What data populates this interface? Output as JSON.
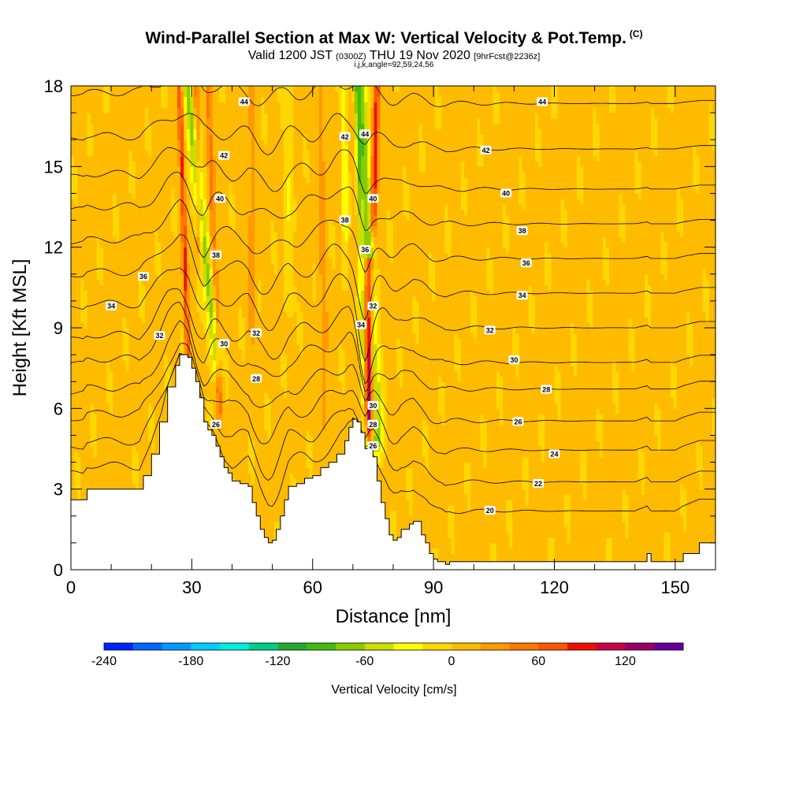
{
  "header": {
    "title": "Wind-Parallel Section at Max W: Vertical Velocity & Pot.Temp.",
    "copyright": "(C)",
    "valid_prefix": "Valid 1200 JST",
    "valid_utc": "(0300Z)",
    "valid_date": "THU 19 Nov 2020",
    "forecast": "[9hrFcst@2236z]",
    "indices": "i,j,k,angle=92,59,24,56"
  },
  "chart_data": {
    "type": "heatmap",
    "title": "Wind-Parallel Section at Max W: Vertical Velocity & Pot.Temp.",
    "xlabel": "Distance [nm]",
    "ylabel": "Height [Kft MSL]",
    "xlim": [
      0,
      160
    ],
    "ylim": [
      0,
      18
    ],
    "x_ticks": [
      "0",
      "30",
      "60",
      "90",
      "120",
      "150"
    ],
    "y_ticks": [
      "0",
      "3",
      "6",
      "9",
      "12",
      "15",
      "18"
    ],
    "x_tick_values": [
      0,
      30,
      60,
      90,
      120,
      150
    ],
    "y_tick_values": [
      0,
      3,
      6,
      9,
      12,
      15,
      18
    ],
    "terrain_profile": {
      "x": [
        0,
        3,
        4,
        17,
        18,
        20,
        22,
        24,
        26,
        27,
        29,
        30,
        31,
        32,
        33,
        34,
        35,
        36,
        37,
        38,
        39,
        40,
        42,
        44,
        45,
        46,
        47,
        48,
        49,
        50,
        51,
        52,
        53,
        54,
        56,
        58,
        60,
        62,
        64,
        66,
        68,
        69,
        70,
        71,
        72,
        73,
        74,
        75,
        76,
        77,
        78,
        79,
        80,
        81,
        82,
        84,
        85,
        87,
        88,
        89,
        90,
        91,
        92,
        93,
        94,
        95,
        100,
        110,
        120,
        130,
        140,
        143,
        144,
        148,
        150,
        152,
        156,
        160
      ],
      "height_kft": [
        2.6,
        2.6,
        3.0,
        3.0,
        3.5,
        4.3,
        5.5,
        6.8,
        7.6,
        8.0,
        7.9,
        7.5,
        7.0,
        6.4,
        5.5,
        5.2,
        5.0,
        4.6,
        4.2,
        3.8,
        3.6,
        3.3,
        3.2,
        3.1,
        2.5,
        2.0,
        1.5,
        1.2,
        1.0,
        1.1,
        1.5,
        2.0,
        2.6,
        3.1,
        3.2,
        3.4,
        3.5,
        3.8,
        4.0,
        4.3,
        4.8,
        5.3,
        5.6,
        5.5,
        5.1,
        4.5,
        4.6,
        4.2,
        3.3,
        2.5,
        1.9,
        1.3,
        1.1,
        1.2,
        1.5,
        1.7,
        1.8,
        1.3,
        1.0,
        0.6,
        0.4,
        0.3,
        0.3,
        0.2,
        0.3,
        0.3,
        0.3,
        0.3,
        0.3,
        0.3,
        0.3,
        0.6,
        0.3,
        0.3,
        0.3,
        0.6,
        1.0,
        1.0
      ]
    },
    "vertical_velocity_features": [
      {
        "x0": 29,
        "x1": 36,
        "y0": 18,
        "y1": 8.0,
        "half_width": 1.3,
        "w": -75
      },
      {
        "x0": 27,
        "x1": 29,
        "y0": 18,
        "y1": 8.0,
        "half_width": 0.6,
        "w": 75
      },
      {
        "x0": 31,
        "x1": 32,
        "y0": 18,
        "y1": 12,
        "half_width": 0.6,
        "w": 55
      },
      {
        "x0": 34,
        "x1": 37,
        "y0": 18,
        "y1": 6,
        "half_width": 0.8,
        "w": 45
      },
      {
        "x0": 72,
        "x1": 76,
        "y0": 18,
        "y1": 4.8,
        "half_width": 1.4,
        "w": -80
      },
      {
        "x0": 71,
        "x1": 73,
        "y0": 18,
        "y1": 4.8,
        "half_width": 0.6,
        "w": -60
      },
      {
        "x0": 74,
        "x1": 74,
        "y0": 11,
        "y1": 5.5,
        "half_width": 1.1,
        "w": 140
      },
      {
        "x0": 76,
        "x1": 75,
        "y0": 18,
        "y1": 13,
        "half_width": 0.8,
        "w": 90
      },
      {
        "x0": 68,
        "x1": 68,
        "y0": 18,
        "y1": 11,
        "half_width": 0.7,
        "w": -35
      },
      {
        "x0": 62,
        "x1": 63,
        "y0": 18,
        "y1": 5.5,
        "half_width": 0.9,
        "w": 25
      },
      {
        "x0": 54,
        "x1": 54,
        "y0": 18,
        "y1": 10,
        "half_width": 1.2,
        "w": -20
      },
      {
        "x0": 45,
        "x1": 45,
        "y0": 18,
        "y1": 9,
        "half_width": 0.9,
        "w": 25
      }
    ],
    "potential_temperature_levels": [
      20,
      22,
      24,
      26,
      28,
      30,
      32,
      34,
      36,
      38,
      40,
      42,
      44
    ],
    "theta_heights_kft_far_field": [
      2.0,
      3.1,
      4.3,
      5.4,
      6.6,
      7.6,
      8.9,
      10.2,
      11.5,
      12.8,
      14.1,
      15.6,
      17.3
    ],
    "contour_labels": [
      {
        "text": "44",
        "x": 43,
        "y": 17.4
      },
      {
        "text": "42",
        "x": 38,
        "y": 15.4
      },
      {
        "text": "40",
        "x": 37,
        "y": 13.8
      },
      {
        "text": "38",
        "x": 36,
        "y": 11.7
      },
      {
        "text": "36",
        "x": 18,
        "y": 10.9
      },
      {
        "text": "34",
        "x": 10,
        "y": 9.8
      },
      {
        "text": "32",
        "x": 22,
        "y": 8.7
      },
      {
        "text": "30",
        "x": 38,
        "y": 8.4
      },
      {
        "text": "32",
        "x": 46,
        "y": 8.8
      },
      {
        "text": "28",
        "x": 46,
        "y": 7.1
      },
      {
        "text": "26",
        "x": 36,
        "y": 5.4
      },
      {
        "text": "42",
        "x": 68,
        "y": 16.1
      },
      {
        "text": "44",
        "x": 73,
        "y": 16.2
      },
      {
        "text": "40",
        "x": 75,
        "y": 13.8
      },
      {
        "text": "38",
        "x": 68,
        "y": 13.0
      },
      {
        "text": "36",
        "x": 73,
        "y": 11.9
      },
      {
        "text": "34",
        "x": 72,
        "y": 9.1
      },
      {
        "text": "32",
        "x": 75,
        "y": 9.8
      },
      {
        "text": "30",
        "x": 75,
        "y": 6.1
      },
      {
        "text": "28",
        "x": 75,
        "y": 5.4
      },
      {
        "text": "26",
        "x": 75,
        "y": 4.6
      },
      {
        "text": "44",
        "x": 117,
        "y": 17.4
      },
      {
        "text": "42",
        "x": 103,
        "y": 15.6
      },
      {
        "text": "40",
        "x": 108,
        "y": 14.0
      },
      {
        "text": "38",
        "x": 112,
        "y": 12.6
      },
      {
        "text": "36",
        "x": 113,
        "y": 11.4
      },
      {
        "text": "34",
        "x": 112,
        "y": 10.2
      },
      {
        "text": "32",
        "x": 104,
        "y": 8.9
      },
      {
        "text": "30",
        "x": 110,
        "y": 7.8
      },
      {
        "text": "28",
        "x": 118,
        "y": 6.7
      },
      {
        "text": "26",
        "x": 111,
        "y": 5.5
      },
      {
        "text": "24",
        "x": 120,
        "y": 4.3
      },
      {
        "text": "22",
        "x": 116,
        "y": 3.2
      },
      {
        "text": "20",
        "x": 104,
        "y": 2.2
      }
    ],
    "colorbar": {
      "label": "Vertical Velocity [cm/s]",
      "levels": [
        -240,
        -220,
        -200,
        -180,
        -160,
        -140,
        -120,
        -100,
        -80,
        -60,
        -40,
        -20,
        0,
        20,
        40,
        60,
        80,
        100,
        120,
        140,
        160
      ],
      "tick_labels": [
        "-240",
        "-180",
        "-120",
        "-60",
        "0",
        "60",
        "120"
      ],
      "tick_values": [
        -240,
        -180,
        -120,
        -60,
        0,
        60,
        120
      ],
      "colors": [
        "#0022ff",
        "#0066ff",
        "#0099ff",
        "#00ccff",
        "#00eedd",
        "#00cc88",
        "#22aa33",
        "#44bb11",
        "#88cc00",
        "#ccdd00",
        "#ffff00",
        "#ffd700",
        "#ffbb00",
        "#ff9900",
        "#ff7700",
        "#ff5500",
        "#ee1100",
        "#cc0044",
        "#990066",
        "#660099"
      ]
    }
  }
}
